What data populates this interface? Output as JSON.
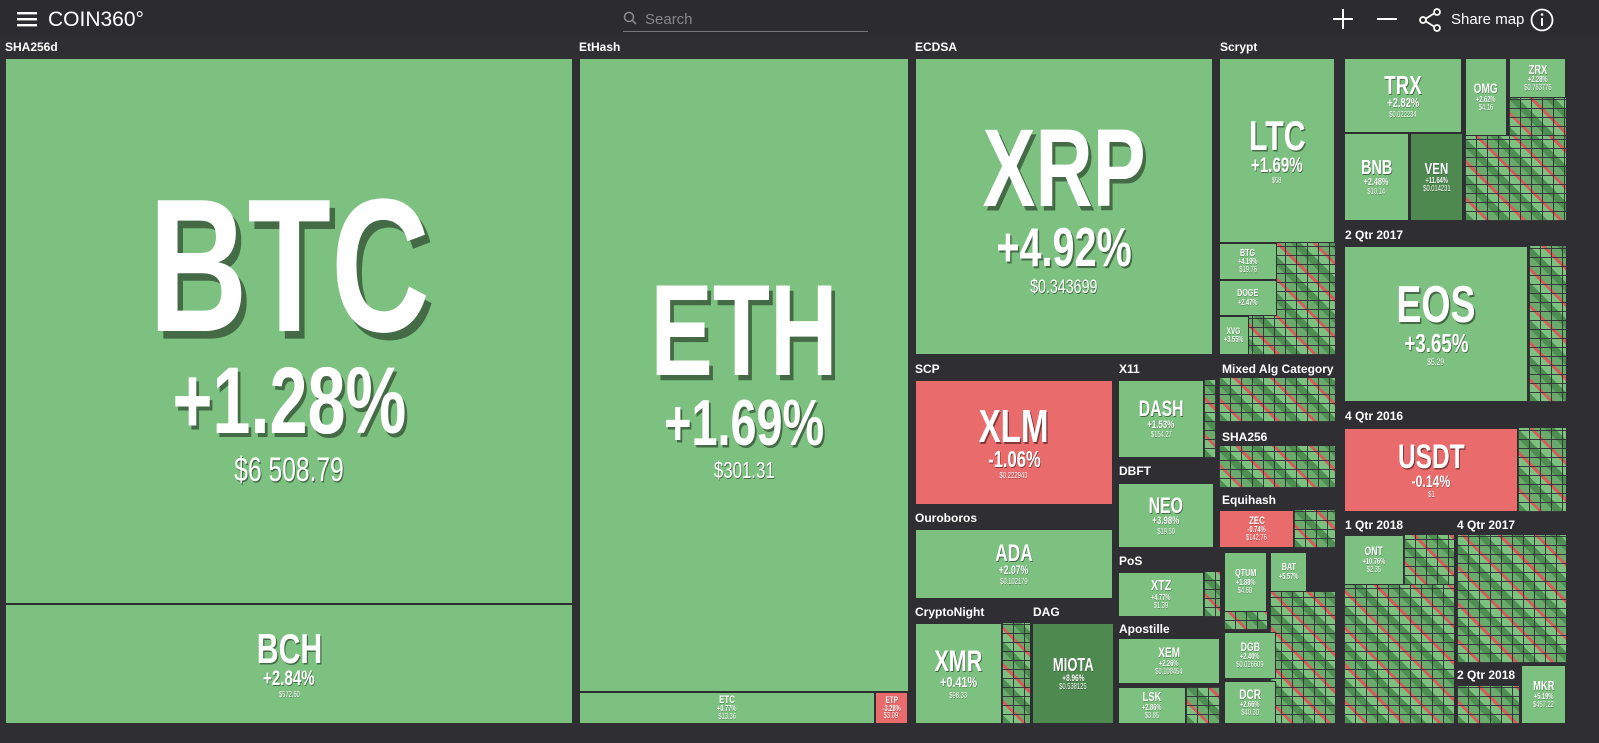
{
  "header": {
    "logo": "COIN360°",
    "search_placeholder": "Search",
    "share": "Share map"
  },
  "groups": [
    "SHA256d",
    "EtHash",
    "ECDSA",
    "Scrypt",
    "SCP",
    "X11",
    "Mixed Alg Category",
    "SHA256",
    "DBFT",
    "Equihash",
    "Ouroboros",
    "PoS",
    "CryptoNight",
    "DAG",
    "Apostille",
    "2 Qtr 2017",
    "4 Qtr 2016",
    "1 Qtr 2018",
    "4 Qtr 2017",
    "2 Qtr 2018"
  ],
  "tiles": [
    {
      "symbol": "BTC",
      "change": "+1.28%",
      "price": "$6 508.79"
    },
    {
      "symbol": "BCH",
      "change": "+2.84%",
      "price": "$572.60"
    },
    {
      "symbol": "ETH",
      "change": "+1.69%",
      "price": "$301.31"
    },
    {
      "symbol": "ETC",
      "change": "+0.77%",
      "price": "$13.36"
    },
    {
      "symbol": "ETP",
      "change": "-3.28%",
      "price": "$3.09"
    },
    {
      "symbol": "XRP",
      "change": "+4.92%",
      "price": "$0.343699"
    },
    {
      "symbol": "LTC",
      "change": "+1.69%",
      "price": "$58"
    },
    {
      "symbol": "XLM",
      "change": "-1.06%",
      "price": "$0.222943"
    },
    {
      "symbol": "DASH",
      "change": "+1.53%",
      "price": "$154.27"
    },
    {
      "symbol": "NEO",
      "change": "+3.98%",
      "price": "$19.50"
    },
    {
      "symbol": "ADA",
      "change": "+2.07%",
      "price": "$0.102179"
    },
    {
      "symbol": "XTZ",
      "change": "+4.77%",
      "price": "$1.39"
    },
    {
      "symbol": "XMR",
      "change": "+0.41%",
      "price": "$98.33"
    },
    {
      "symbol": "MIOTA",
      "change": "+8.96%",
      "price": "$0.538125"
    },
    {
      "symbol": "XEM",
      "change": "+2.26%",
      "price": "$0.108454"
    },
    {
      "symbol": "LSK",
      "change": "+2.86%",
      "price": "$3.85"
    },
    {
      "symbol": "TRX",
      "change": "+2.82%",
      "price": "$0.022234"
    },
    {
      "symbol": "BNB",
      "change": "+2.48%",
      "price": "$10.14"
    },
    {
      "symbol": "VEN",
      "change": "+11.64%",
      "price": "$0.014231"
    },
    {
      "symbol": "OMG",
      "change": "+2.62%",
      "price": "$4.16"
    },
    {
      "symbol": "ZRX",
      "change": "+2.28%",
      "price": "$0.763776"
    },
    {
      "symbol": "EOS",
      "change": "+3.65%",
      "price": "$5.29"
    },
    {
      "symbol": "USDT",
      "change": "-0.14%",
      "price": "$1"
    },
    {
      "symbol": "ZEC",
      "change": "-0.74%",
      "price": "$142.76"
    },
    {
      "symbol": "BTG",
      "change": "+4.19%",
      "price": "$19.76"
    },
    {
      "symbol": "DOGE",
      "change": "+2.47%"
    },
    {
      "symbol": "QTUM",
      "change": "+1.88%",
      "price": "$4.60"
    },
    {
      "symbol": "DGB",
      "change": "+2.40%",
      "price": "$0.026609"
    },
    {
      "symbol": "DCR",
      "change": "+2.66%",
      "price": "$40.30"
    },
    {
      "symbol": "BAT",
      "change": "+5.57%"
    },
    {
      "symbol": "ONT",
      "change": "+10.76%",
      "price": "$2.35"
    },
    {
      "symbol": "MKR",
      "change": "+5.19%",
      "price": "$457.22"
    },
    {
      "symbol": "XVG",
      "change": "+3.55%"
    }
  ]
}
